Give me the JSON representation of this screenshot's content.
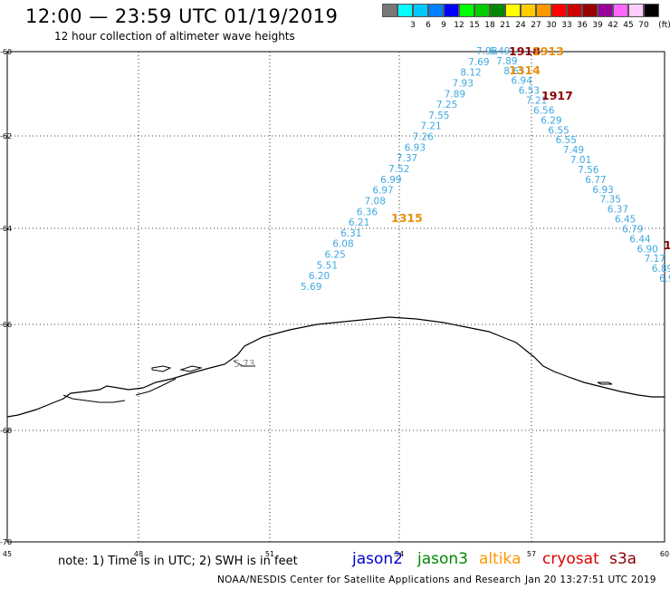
{
  "header": {
    "title": "12:00 — 23:59 UTC 01/19/2019",
    "subtitle": "12 hour collection of altimeter wave heights"
  },
  "scale": {
    "unit": "(ft)",
    "bins": [
      {
        "label": "",
        "color": "#777777"
      },
      {
        "label": "3",
        "color": "#00ffff"
      },
      {
        "label": "6",
        "color": "#00c8ff"
      },
      {
        "label": "9",
        "color": "#0080ff"
      },
      {
        "label": "12",
        "color": "#0000ff"
      },
      {
        "label": "15",
        "color": "#00ff00"
      },
      {
        "label": "18",
        "color": "#00cc00"
      },
      {
        "label": "21",
        "color": "#008800"
      },
      {
        "label": "24",
        "color": "#ffff00"
      },
      {
        "label": "27",
        "color": "#ffcc00"
      },
      {
        "label": "30",
        "color": "#ff9900"
      },
      {
        "label": "33",
        "color": "#ff0000"
      },
      {
        "label": "36",
        "color": "#cc0000"
      },
      {
        "label": "39",
        "color": "#990000"
      },
      {
        "label": "42",
        "color": "#990099"
      },
      {
        "label": "45",
        "color": "#ff66ff"
      },
      {
        "label": "70",
        "color": "#ffccff"
      },
      {
        "label": "",
        "color": "#000000"
      }
    ]
  },
  "map": {
    "lat_labels": [
      "-60",
      "-62",
      "-64",
      "-66",
      "-68",
      "-70"
    ],
    "lon_labels": [
      "45",
      "48",
      "51",
      "54",
      "57",
      "60"
    ]
  },
  "tracks": [
    {
      "id": "track-a",
      "color": "#3fa8e0",
      "values": [
        "5.69",
        "6.20",
        "5.51",
        "6.25",
        "6.08",
        "6.31",
        "6.21",
        "6.36",
        "7.08",
        "6.97",
        "6.99",
        "7.52",
        "7.37",
        "6.93",
        "7.26",
        "7.21",
        "7.55",
        "7.25",
        "7.89",
        "7.93",
        "8.12",
        "7.69",
        "7.98"
      ]
    },
    {
      "id": "track-b",
      "color": "#3fa8e0",
      "values": [
        "6.49",
        "7.89",
        "8.65",
        "6.94",
        "6.53",
        "7.21",
        "6.56",
        "6.29",
        "6.55",
        "6.55",
        "7.49",
        "7.01",
        "7.56",
        "6.77",
        "6.93",
        "7.35",
        "6.37",
        "6.45",
        "6.79",
        "6.44",
        "6.90",
        "7.17",
        "6.89",
        "6.9"
      ]
    },
    {
      "id": "coast-value",
      "color": "#888888",
      "values": [
        "5.73"
      ]
    }
  ],
  "time_labels": [
    {
      "text": "1918",
      "color": "#8b0000"
    },
    {
      "text": "1913",
      "color": "#e8900a"
    },
    {
      "text": "1314",
      "color": "#e8900a"
    },
    {
      "text": "1917",
      "color": "#8b0000"
    },
    {
      "text": "1315",
      "color": "#e8900a"
    },
    {
      "text": "1",
      "color": "#8b0000"
    }
  ],
  "footer": {
    "note": "note: 1) Time is in UTC; 2) SWH is in feet",
    "legend": [
      {
        "name": "jason2",
        "color": "#0000cc"
      },
      {
        "name": "jason3",
        "color": "#008800"
      },
      {
        "name": "altika",
        "color": "#ff9900"
      },
      {
        "name": "cryosat",
        "color": "#dd0000"
      },
      {
        "name": "s3a",
        "color": "#8b0000"
      }
    ],
    "credit": "NOAA/NESDIS Center for Satellite Applications and Research",
    "timestamp": "Jan 20 13:27:51 UTC 2019"
  }
}
